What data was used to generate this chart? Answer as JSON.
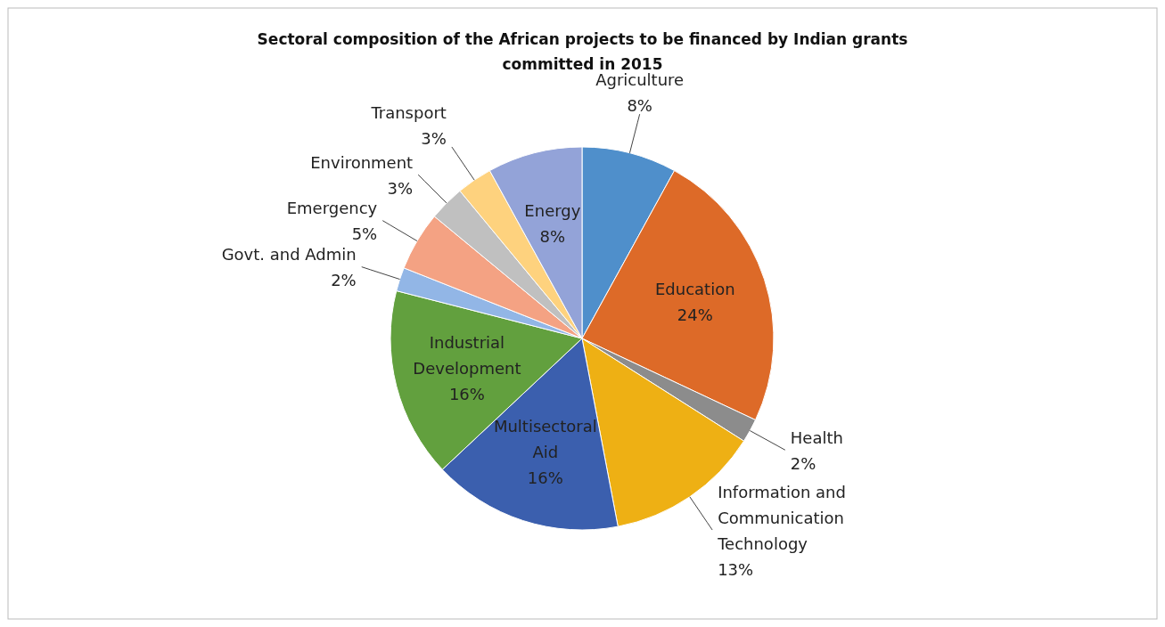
{
  "chart_data": {
    "type": "pie",
    "title": "Sectoral composition of the African projects to be financed by Indian grants committed in 2015",
    "categories": [
      "Agriculture",
      "Education",
      "Health",
      "Information and Communication Technology",
      "Multisectoral Aid",
      "Industrial Development",
      "Govt. and Admin",
      "Emergency",
      "Environment",
      "Transport",
      "Energy"
    ],
    "values": [
      8,
      24,
      2,
      13,
      16,
      16,
      2,
      5,
      3,
      3,
      8
    ],
    "colors": [
      "#4f8fcb",
      "#dd6a28",
      "#8c8c8c",
      "#eeb014",
      "#3b5fae",
      "#62a03e",
      "#92b6e6",
      "#f4a283",
      "#c0c0c0",
      "#fed27e",
      "#93a3d8"
    ],
    "value_labels": [
      "8%",
      "24%",
      "2%",
      "13%",
      "16%",
      "16%",
      "2%",
      "5%",
      "3%",
      "3%",
      "8%"
    ]
  }
}
